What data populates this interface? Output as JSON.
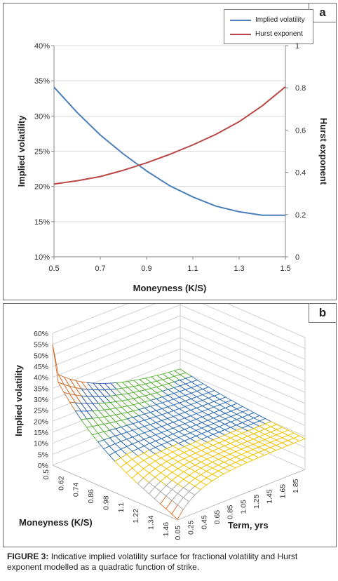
{
  "panel_a": {
    "letter": "a",
    "legend": [
      "Implied volatility",
      "Hurst exponent"
    ],
    "colors": {
      "iv": "#4a7eba",
      "hurst": "#b84745"
    }
  },
  "panel_b": {
    "letter": "b"
  },
  "caption": {
    "label": "FIGURE 3:",
    "text": "Indicative implied volatility surface for fractional volatility and Hurst exponent modelled as a quadratic function of strike."
  },
  "chart_data": [
    {
      "type": "line",
      "xlabel": "Moneyness (K/S)",
      "ylabel": "Implied volatility",
      "y2label": "Hurst exponent",
      "xlim": [
        0.5,
        1.5
      ],
      "xticks": [
        "0.5",
        "0.7",
        "0.9",
        "1.1",
        "1.3",
        "1.5"
      ],
      "ylim": [
        0.1,
        0.4
      ],
      "yticks": [
        "10%",
        "15%",
        "20%",
        "25%",
        "30%",
        "35%",
        "40%"
      ],
      "y2lim": [
        0,
        1
      ],
      "y2ticks": [
        "0",
        "0.2",
        "0.4",
        "0.6",
        "0.8",
        "1"
      ],
      "series": [
        {
          "name": "Implied volatility",
          "axis": "left",
          "x": [
            0.5,
            0.6,
            0.7,
            0.8,
            0.9,
            1.0,
            1.1,
            1.2,
            1.3,
            1.4,
            1.5
          ],
          "y": [
            0.341,
            0.305,
            0.273,
            0.246,
            0.222,
            0.201,
            0.185,
            0.172,
            0.164,
            0.159,
            0.159
          ]
        },
        {
          "name": "Hurst exponent",
          "axis": "right",
          "x": [
            0.5,
            0.6,
            0.7,
            0.8,
            0.9,
            1.0,
            1.1,
            1.2,
            1.3,
            1.4,
            1.5
          ],
          "y": [
            0.345,
            0.36,
            0.38,
            0.41,
            0.445,
            0.485,
            0.53,
            0.58,
            0.64,
            0.715,
            0.805
          ]
        }
      ],
      "grid": true
    },
    {
      "type": "surface",
      "zlabel": "Implied volatility",
      "xlabel": "Moneyness (K/S)",
      "ylabel": "Term, yrs",
      "zticks": [
        "0%",
        "5%",
        "10%",
        "15%",
        "20%",
        "25%",
        "30%",
        "35%",
        "40%",
        "45%",
        "50%",
        "55%",
        "60%"
      ],
      "zlim": [
        0,
        0.6
      ],
      "xticks": [
        "0.5",
        "0.62",
        "0.74",
        "0.86",
        "0.98",
        "1.1",
        "1.22",
        "1.34",
        "1.46"
      ],
      "yticks": [
        "0.05",
        "0.25",
        "0.45",
        "0.65",
        "0.85",
        "1.05",
        "1.25",
        "1.45",
        "1.65",
        "1.85"
      ],
      "xlim": [
        0.5,
        1.5
      ],
      "ylim": [
        0.05,
        2.0
      ],
      "band_colors": [
        "#e8732b",
        "#a9a9a9",
        "#f2c300",
        "#2d6fb5",
        "#5cb33b",
        "#2f5fa8",
        "#cf6b2a"
      ],
      "band_edges": [
        0,
        0.05,
        0.1,
        0.15,
        0.2,
        0.25,
        0.3,
        0.6
      ]
    }
  ]
}
